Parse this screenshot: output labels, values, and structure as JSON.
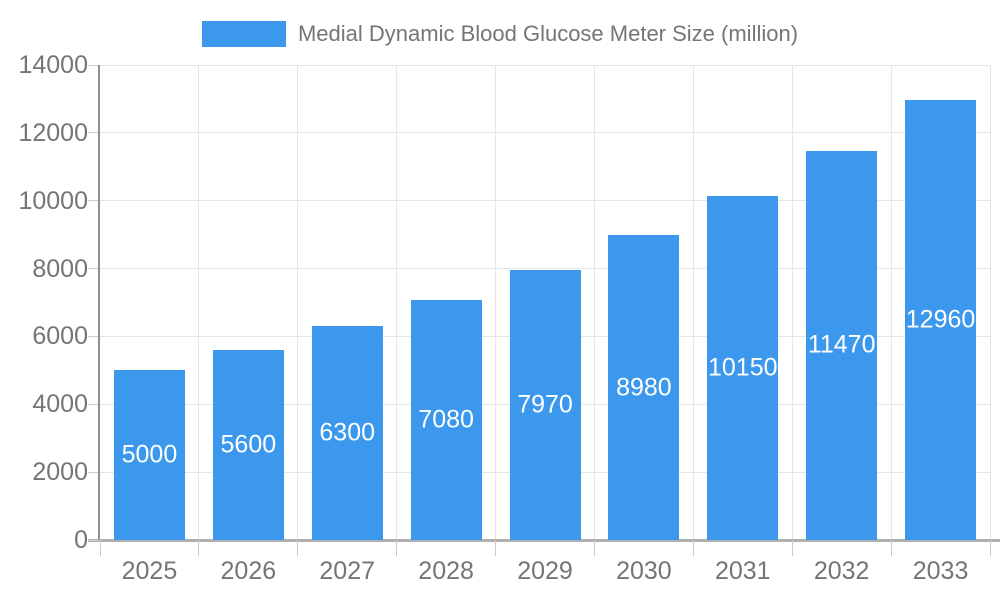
{
  "legend": {
    "label": "Medial Dynamic Blood Glucose Meter Size (million)"
  },
  "chart_data": {
    "type": "bar",
    "title": "Medial Dynamic Blood Glucose Meter Size (million)",
    "categories": [
      "2025",
      "2026",
      "2027",
      "2028",
      "2029",
      "2030",
      "2031",
      "2032",
      "2033"
    ],
    "values": [
      5000,
      5600,
      6300,
      7080,
      7970,
      8980,
      10150,
      11470,
      12960
    ],
    "series": [
      {
        "name": "Medial Dynamic Blood Glucose Meter Size (million)",
        "values": [
          5000,
          5600,
          6300,
          7080,
          7970,
          8980,
          10150,
          11470,
          12960
        ]
      }
    ],
    "xlabel": "",
    "ylabel": "",
    "ylim": [
      0,
      14000
    ],
    "yticks": [
      0,
      2000,
      4000,
      6000,
      8000,
      10000,
      12000,
      14000
    ],
    "grid": true,
    "legend_position": "top",
    "bar_color": "#3B98EC",
    "bar_label_color": "#FFFFFF"
  },
  "colors": {
    "background": "#FFFFFF",
    "grid_line": "#E6E6E6",
    "axis_line": "#B0B0B0",
    "tick_mark": "#CCCCCC",
    "axis_text": "#757575"
  }
}
